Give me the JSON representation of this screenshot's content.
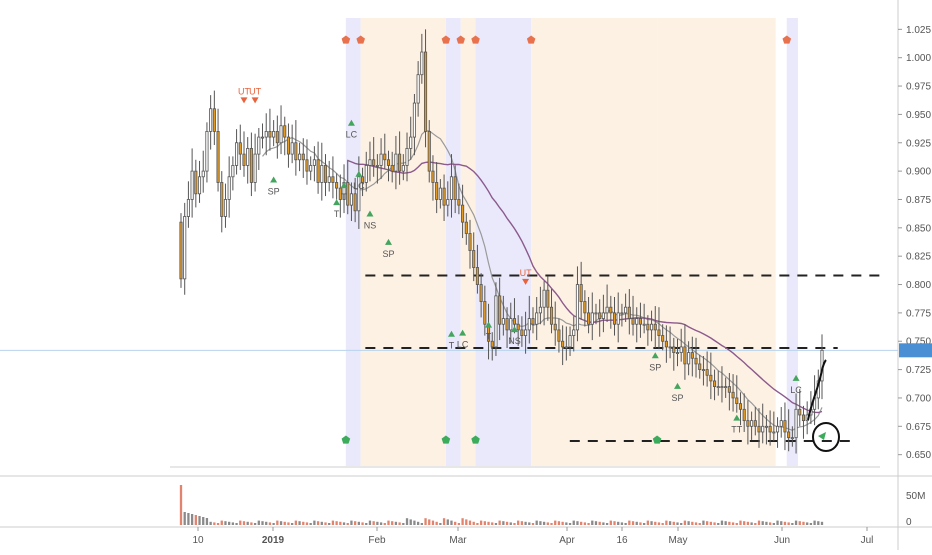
{
  "chart_data": {
    "type": "candlestick",
    "title": "",
    "xlabel": "",
    "ylabel": "",
    "ylim": [
      0.64,
      1.035
    ],
    "price_ticks": [
      "1.025",
      "1.000",
      "0.975",
      "0.950",
      "0.925",
      "0.900",
      "0.875",
      "0.850",
      "0.825",
      "0.800",
      "0.775",
      "0.750",
      "0.725",
      "0.700",
      "0.675",
      "0.650"
    ],
    "x_ticks": [
      "10",
      "2019",
      "Feb",
      "Mar",
      "Apr",
      "16",
      "May",
      "Jun",
      "Jul"
    ],
    "volume_ticks": [
      "50M",
      "0"
    ],
    "current_price": 0.742,
    "candles_close": [
      0.805,
      0.86,
      0.875,
      0.9,
      0.88,
      0.895,
      0.9,
      0.935,
      0.955,
      0.935,
      0.89,
      0.86,
      0.875,
      0.895,
      0.905,
      0.925,
      0.915,
      0.905,
      0.92,
      0.89,
      0.915,
      0.93,
      0.93,
      0.935,
      0.93,
      0.935,
      0.925,
      0.94,
      0.93,
      0.915,
      0.925,
      0.91,
      0.915,
      0.91,
      0.9,
      0.905,
      0.91,
      0.89,
      0.905,
      0.89,
      0.895,
      0.89,
      0.885,
      0.875,
      0.89,
      0.87,
      0.88,
      0.865,
      0.895,
      0.89,
      0.905,
      0.91,
      0.905,
      0.905,
      0.915,
      0.91,
      0.905,
      0.9,
      0.915,
      0.9,
      0.905,
      0.92,
      0.93,
      0.96,
      0.985,
      1.005,
      0.935,
      0.9,
      0.89,
      0.875,
      0.885,
      0.87,
      0.875,
      0.895,
      0.875,
      0.87,
      0.855,
      0.845,
      0.83,
      0.815,
      0.8,
      0.785,
      0.765,
      0.75,
      0.745,
      0.79,
      0.765,
      0.77,
      0.76,
      0.77,
      0.765,
      0.76,
      0.755,
      0.76,
      0.77,
      0.765,
      0.775,
      0.78,
      0.795,
      0.78,
      0.765,
      0.76,
      0.75,
      0.745,
      0.745,
      0.755,
      0.76,
      0.8,
      0.785,
      0.775,
      0.765,
      0.775,
      0.775,
      0.77,
      0.775,
      0.78,
      0.775,
      0.765,
      0.775,
      0.775,
      0.78,
      0.77,
      0.765,
      0.77,
      0.765,
      0.765,
      0.76,
      0.765,
      0.76,
      0.755,
      0.75,
      0.745,
      0.745,
      0.74,
      0.74,
      0.745,
      0.73,
      0.74,
      0.735,
      0.73,
      0.725,
      0.725,
      0.72,
      0.715,
      0.71,
      0.71,
      0.71,
      0.71,
      0.705,
      0.7,
      0.695,
      0.69,
      0.68,
      0.675,
      0.68,
      0.675,
      0.67,
      0.675,
      0.675,
      0.67,
      0.67,
      0.675,
      0.68,
      0.67,
      0.665,
      0.665,
      0.69,
      0.685,
      0.68,
      0.685,
      0.69,
      0.7,
      0.715,
      0.742
    ],
    "ma_fast_label": "",
    "ma_slow_label": "",
    "annotations": [
      {
        "text": "UT",
        "index": 17,
        "price": 0.965,
        "color": "#e8623e",
        "type": "down"
      },
      {
        "text": "UT",
        "index": 20,
        "price": 0.965,
        "color": "#e8623e",
        "type": "down"
      },
      {
        "text": "SP",
        "index": 25,
        "price": 0.89,
        "color": "#44a55e",
        "type": "up"
      },
      {
        "text": "T",
        "index": 42,
        "price": 0.87,
        "color": "#44a55e",
        "type": "up"
      },
      {
        "text": "T",
        "index": 44,
        "price": 0.885,
        "color": "#44a55e",
        "type": "up"
      },
      {
        "text": "LC",
        "index": 46,
        "price": 0.94,
        "color": "#44a55e",
        "type": "up"
      },
      {
        "text": "LC",
        "index": 48,
        "price": 0.895,
        "color": "#44a55e",
        "type": "up"
      },
      {
        "text": "NS",
        "index": 51,
        "price": 0.86,
        "color": "#44a55e",
        "type": "up"
      },
      {
        "text": "SP",
        "index": 56,
        "price": 0.835,
        "color": "#44a55e",
        "type": "up"
      },
      {
        "text": "T",
        "index": 73,
        "price": 0.754,
        "color": "#44a55e",
        "type": "up"
      },
      {
        "text": "LC",
        "index": 76,
        "price": 0.755,
        "color": "#44a55e",
        "type": "up"
      },
      {
        "text": "T",
        "index": 83,
        "price": 0.762,
        "color": "#44a55e",
        "type": "up"
      },
      {
        "text": "NS",
        "index": 90,
        "price": 0.758,
        "color": "#44a55e",
        "type": "up"
      },
      {
        "text": "UT",
        "index": 93,
        "price": 0.805,
        "color": "#e8623e",
        "type": "down"
      },
      {
        "text": "SP",
        "index": 128,
        "price": 0.735,
        "color": "#44a55e",
        "type": "up"
      },
      {
        "text": "SP",
        "index": 134,
        "price": 0.708,
        "color": "#44a55e",
        "type": "up"
      },
      {
        "text": "TT",
        "index": 150,
        "price": 0.68,
        "color": "#44a55e",
        "type": "up"
      },
      {
        "text": "LC",
        "index": 166,
        "price": 0.715,
        "color": "#44a55e",
        "type": "up"
      }
    ],
    "levels": [
      {
        "price": 0.808,
        "from": 0.27,
        "to": 1.0
      },
      {
        "price": 0.744,
        "from": 0.27,
        "to": 0.94
      },
      {
        "price": 0.662,
        "from": 0.56,
        "to": 0.96
      }
    ]
  }
}
